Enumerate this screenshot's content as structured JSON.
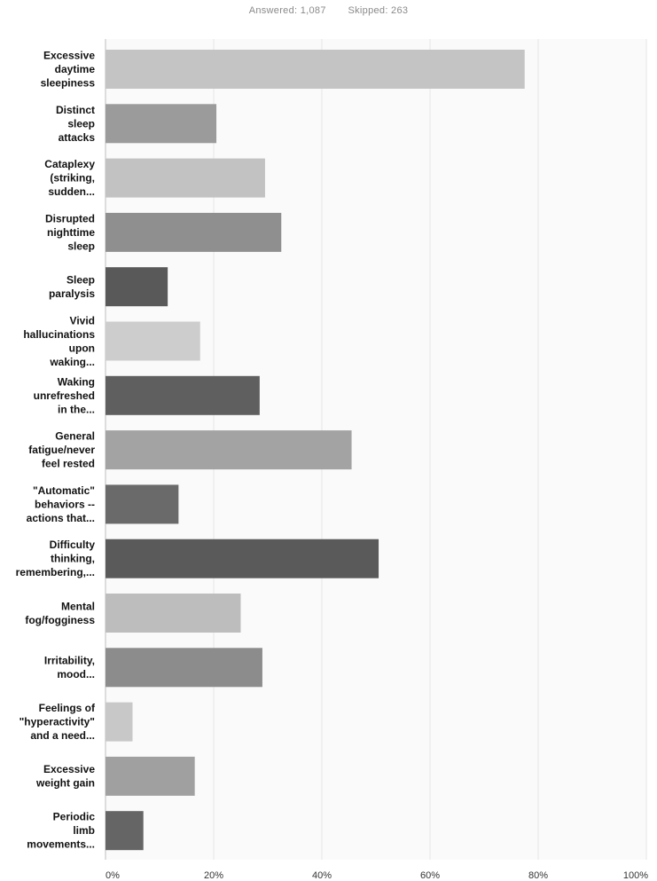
{
  "summary": {
    "answered_label": "Answered:",
    "answered_value": "1,087",
    "skipped_label": "Skipped:",
    "skipped_value": "263"
  },
  "chart_data": {
    "type": "bar",
    "orientation": "horizontal",
    "categories": [
      [
        "Excessive",
        "daytime",
        "sleepiness"
      ],
      [
        "Distinct",
        "sleep",
        "attacks"
      ],
      [
        "Cataplexy",
        "(striking,",
        "sudden..."
      ],
      [
        "Disrupted",
        "nighttime",
        "sleep"
      ],
      [
        "Sleep",
        "paralysis"
      ],
      [
        "Vivid",
        "hallucinations",
        "upon",
        "waking..."
      ],
      [
        "Waking",
        "unrefreshed",
        "in the..."
      ],
      [
        "General",
        "fatigue/never",
        "feel rested"
      ],
      [
        "\"Automatic\"",
        "behaviors --",
        "actions that..."
      ],
      [
        "Difficulty",
        "thinking,",
        "remembering,..."
      ],
      [
        "Mental",
        "fog/fogginess"
      ],
      [
        "Irritability,",
        "mood..."
      ],
      [
        "Feelings of",
        "\"hyperactivity\"",
        "and a need..."
      ],
      [
        "Excessive",
        "weight gain"
      ],
      [
        "Periodic",
        "limb",
        "movements..."
      ]
    ],
    "values": [
      77.5,
      20.5,
      29.5,
      32.5,
      11.5,
      17.5,
      28.5,
      45.5,
      13.5,
      50.5,
      25,
      29,
      5,
      16.5,
      7
    ],
    "bar_colors": [
      "#c4c4c4",
      "#9b9b9b",
      "#c2c2c2",
      "#8f8f8f",
      "#595959",
      "#cdcdcd",
      "#5f5f5f",
      "#a3a3a3",
      "#6a6a6a",
      "#5a5a5a",
      "#bdbdbd",
      "#8c8c8c",
      "#c8c8c8",
      "#a0a0a0",
      "#656565"
    ],
    "xlim": [
      0,
      100
    ],
    "x_ticks": [
      "0%",
      "20%",
      "40%",
      "60%",
      "80%",
      "100%"
    ],
    "x_tick_values": [
      0,
      20,
      40,
      60,
      80,
      100
    ],
    "grid": true,
    "title": "",
    "xlabel": "",
    "ylabel": ""
  }
}
